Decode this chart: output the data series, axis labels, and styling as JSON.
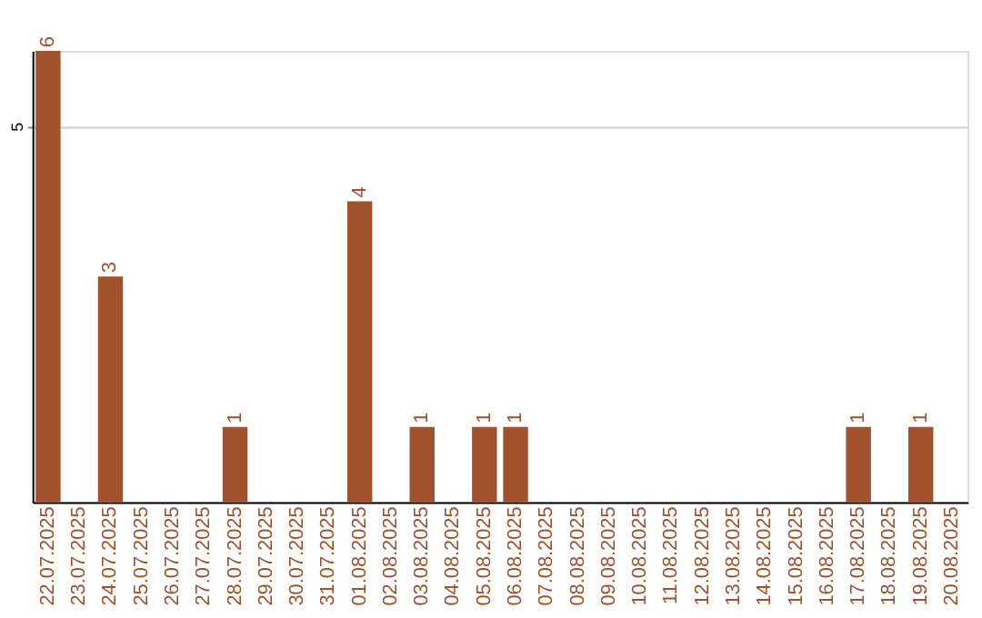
{
  "chart_data": {
    "type": "bar",
    "categories": [
      "22.07.2025",
      "23.07.2025",
      "24.07.2025",
      "25.07.2025",
      "26.07.2025",
      "27.07.2025",
      "28.07.2025",
      "29.07.2025",
      "30.07.2025",
      "31.07.2025",
      "01.08.2025",
      "02.08.2025",
      "03.08.2025",
      "04.08.2025",
      "05.08.2025",
      "06.08.2025",
      "07.08.2025",
      "08.08.2025",
      "09.08.2025",
      "10.08.2025",
      "11.08.2025",
      "12.08.2025",
      "13.08.2025",
      "14.08.2025",
      "15.08.2025",
      "16.08.2025",
      "17.08.2025",
      "18.08.2025",
      "19.08.2025",
      "20.08.2025"
    ],
    "values": [
      6,
      0,
      3,
      0,
      0,
      0,
      1,
      0,
      0,
      0,
      4,
      0,
      1,
      0,
      1,
      1,
      0,
      0,
      0,
      0,
      0,
      0,
      0,
      0,
      0,
      0,
      1,
      0,
      1,
      0
    ],
    "value_labels": [
      "6",
      null,
      "3",
      null,
      null,
      null,
      "1",
      null,
      null,
      null,
      "4",
      null,
      "1",
      null,
      "1",
      "1",
      null,
      null,
      null,
      null,
      null,
      null,
      null,
      null,
      null,
      null,
      "1",
      null,
      "1",
      null
    ],
    "color": "#a0522d",
    "ylim": [
      0,
      6
    ],
    "yticks": [
      5
    ],
    "grid": "y"
  }
}
